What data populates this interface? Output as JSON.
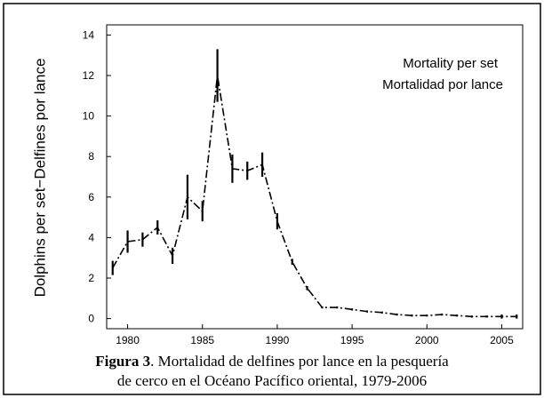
{
  "chart_data": {
    "type": "line",
    "y_label": "Dolphins per set−Delfines por lance",
    "legend": [
      "Mortality per set",
      "Mortalidad por lance"
    ],
    "caption": {
      "label": "Figura 3",
      "lines": [
        ". Mortalidad de delfines por lance en la pesquería",
        "de cerco en el Océano Pacífico oriental, 1979-2006"
      ]
    },
    "x": [
      1979,
      1980,
      1981,
      1982,
      1983,
      1984,
      1985,
      1986,
      1987,
      1988,
      1989,
      1990,
      1991,
      1992,
      1993,
      1994,
      1995,
      1996,
      1997,
      1998,
      1999,
      2000,
      2001,
      2002,
      2003,
      2004,
      2005,
      2006
    ],
    "series": [
      {
        "name": "Mortality per set",
        "color": "#000000",
        "values": [
          2.5,
          3.8,
          3.9,
          4.5,
          3.1,
          6.0,
          5.3,
          12.0,
          7.4,
          7.3,
          7.6,
          4.8,
          2.8,
          1.5,
          0.55,
          0.55,
          0.45,
          0.35,
          0.3,
          0.2,
          0.15,
          0.15,
          0.2,
          0.15,
          0.1,
          0.1,
          0.1,
          0.1
        ],
        "errors": [
          0.35,
          0.55,
          0.35,
          0.35,
          0.4,
          1.1,
          0.5,
          1.3,
          0.7,
          0.45,
          0.6,
          0.4,
          0.15,
          0.1,
          0.05,
          0.05,
          0.05,
          0.05,
          0.05,
          0.05,
          0.05,
          0.05,
          0.05,
          0.05,
          0.05,
          0.05,
          0.1,
          0.1
        ]
      }
    ],
    "xlim": [
      1978.6,
      2006.4
    ],
    "xticks": [
      1980,
      1985,
      1990,
      1995,
      2000,
      2005
    ],
    "ylim": [
      -0.5,
      14.5
    ],
    "yticks": [
      0,
      2,
      4,
      6,
      8,
      10,
      12,
      14
    ],
    "grid": false
  }
}
